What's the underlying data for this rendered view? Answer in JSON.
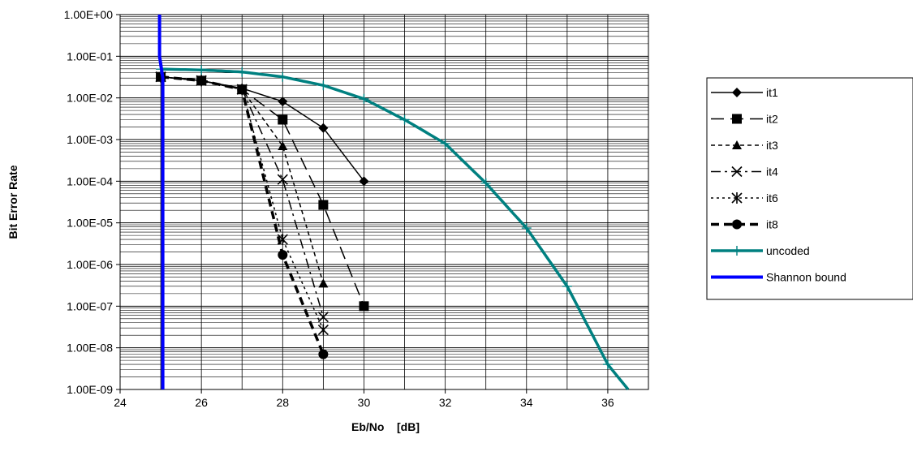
{
  "chart_data": {
    "type": "line",
    "xlabel": "Eb/No    [dB]",
    "ylabel": "Bit Error Rate",
    "xlim": [
      24,
      37
    ],
    "ylim": [
      1e-09,
      1
    ],
    "y_scale": "log",
    "x_ticks": [
      24,
      26,
      28,
      30,
      32,
      34,
      36
    ],
    "x_tick_labels": [
      "24",
      "26",
      "28",
      "30",
      "32",
      "34",
      "36"
    ],
    "y_ticks": [
      1e-09,
      1e-08,
      1e-07,
      1e-06,
      1e-05,
      0.0001,
      0.001,
      0.01,
      0.1,
      1
    ],
    "y_tick_labels": [
      "1.00E-09",
      "1.00E-08",
      "1.00E-07",
      "1.00E-06",
      "1.00E-05",
      "1.00E-04",
      "1.00E-03",
      "1.00E-02",
      "1.00E-01",
      "1.00E+00"
    ],
    "grid": true,
    "legend_position": "right",
    "series": [
      {
        "name": "it1",
        "color": "#000000",
        "dash": "solid",
        "width": 1.5,
        "marker": "diamond",
        "x": [
          25,
          26,
          27,
          28,
          29,
          30
        ],
        "y": [
          0.032,
          0.026,
          0.017,
          0.0082,
          0.0019,
          0.0001
        ]
      },
      {
        "name": "it2",
        "color": "#000000",
        "dash": "longdash",
        "width": 1.5,
        "marker": "square",
        "x": [
          25,
          26,
          27,
          28,
          29,
          30
        ],
        "y": [
          0.032,
          0.026,
          0.016,
          0.003,
          2.7e-05,
          1e-07
        ]
      },
      {
        "name": "it3",
        "color": "#000000",
        "dash": "shortdash",
        "width": 1.5,
        "marker": "triangle",
        "x": [
          25,
          26,
          27,
          28,
          29
        ],
        "y": [
          0.032,
          0.026,
          0.016,
          0.0007,
          3.5e-07
        ]
      },
      {
        "name": "it4",
        "color": "#000000",
        "dash": "dashdot",
        "width": 1.5,
        "marker": "x",
        "x": [
          25,
          26,
          27,
          28,
          29
        ],
        "y": [
          0.032,
          0.026,
          0.016,
          0.00011,
          5.5e-08
        ]
      },
      {
        "name": "it6",
        "color": "#000000",
        "dash": "dotted",
        "width": 1.5,
        "marker": "star",
        "x": [
          25,
          26,
          27,
          28,
          29
        ],
        "y": [
          0.032,
          0.026,
          0.016,
          4e-06,
          2.7e-08
        ]
      },
      {
        "name": "it8",
        "color": "#000000",
        "dash": "thickdash",
        "width": 3.5,
        "marker": "circle",
        "x": [
          25,
          26,
          27,
          28,
          29
        ],
        "y": [
          0.032,
          0.026,
          0.016,
          1.7e-06,
          7e-09
        ]
      },
      {
        "name": "uncoded",
        "color": "#008080",
        "dash": "solid",
        "width": 3.5,
        "marker": "plus",
        "x": [
          25,
          26,
          27,
          28,
          29,
          30,
          31,
          32,
          33,
          34,
          35,
          36,
          36.5
        ],
        "y": [
          0.049,
          0.047,
          0.042,
          0.032,
          0.02,
          0.0095,
          0.003,
          0.0008,
          9e-05,
          7.5e-06,
          3e-07,
          4e-09,
          1e-09
        ]
      },
      {
        "name": "Shannon bound",
        "color": "#0000FF",
        "dash": "solid",
        "width": 4,
        "marker": "none",
        "x": [
          25.05,
          25.05,
          24.97,
          24.97
        ],
        "y": [
          1e-09,
          0.03,
          0.1,
          1
        ]
      }
    ]
  }
}
